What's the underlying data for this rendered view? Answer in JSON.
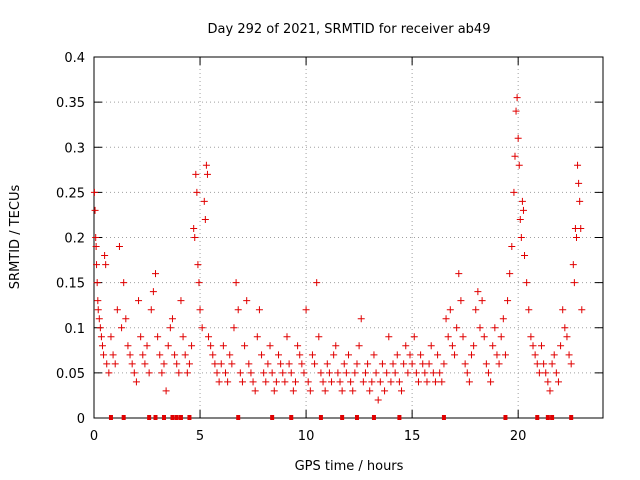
{
  "chart_data": {
    "type": "scatter",
    "title": "Day 292 of 2021, SRMTID for receiver ab49",
    "xlabel": "GPS time / hours",
    "ylabel": "SRMTID / TECUs",
    "xlim": [
      0,
      24
    ],
    "ylim": [
      0,
      0.4
    ],
    "x_ticks": [
      0,
      5,
      10,
      15,
      20
    ],
    "y_ticks": [
      0,
      0.05,
      0.1,
      0.15,
      0.2,
      0.25,
      0.3,
      0.35,
      0.4
    ],
    "x_tick_labels": [
      "0",
      "5",
      "10",
      "15",
      "20"
    ],
    "y_tick_labels": [
      "0",
      "0.05",
      "0.1",
      "0.15",
      "0.2",
      "0.25",
      "0.3",
      "0.35",
      "0.4"
    ],
    "grid": true,
    "marker": "+",
    "color": "#e00000",
    "series": [
      {
        "name": "SRMTID",
        "points": [
          [
            0.02,
            0.25
          ],
          [
            0.05,
            0.23
          ],
          [
            0.08,
            0.2
          ],
          [
            0.1,
            0.19
          ],
          [
            0.12,
            0.17
          ],
          [
            0.15,
            0.15
          ],
          [
            0.18,
            0.13
          ],
          [
            0.2,
            0.12
          ],
          [
            0.25,
            0.11
          ],
          [
            0.3,
            0.1
          ],
          [
            0.35,
            0.09
          ],
          [
            0.4,
            0.08
          ],
          [
            0.45,
            0.07
          ],
          [
            0.5,
            0.18
          ],
          [
            0.55,
            0.17
          ],
          [
            0.6,
            0.06
          ],
          [
            0.7,
            0.05
          ],
          [
            0.8,
            0.09
          ],
          [
            0.9,
            0.07
          ],
          [
            1.0,
            0.06
          ],
          [
            1.1,
            0.12
          ],
          [
            1.2,
            0.19
          ],
          [
            1.3,
            0.1
          ],
          [
            1.4,
            0.15
          ],
          [
            1.5,
            0.11
          ],
          [
            1.6,
            0.08
          ],
          [
            1.7,
            0.07
          ],
          [
            1.8,
            0.06
          ],
          [
            1.9,
            0.05
          ],
          [
            2.0,
            0.04
          ],
          [
            2.1,
            0.13
          ],
          [
            2.2,
            0.09
          ],
          [
            2.3,
            0.07
          ],
          [
            2.4,
            0.06
          ],
          [
            2.5,
            0.08
          ],
          [
            2.6,
            0.05
          ],
          [
            2.7,
            0.12
          ],
          [
            2.8,
            0.14
          ],
          [
            2.9,
            0.16
          ],
          [
            3.0,
            0.09
          ],
          [
            3.1,
            0.07
          ],
          [
            3.2,
            0.05
          ],
          [
            3.3,
            0.06
          ],
          [
            3.4,
            0.03
          ],
          [
            3.5,
            0.08
          ],
          [
            3.6,
            0.1
          ],
          [
            3.7,
            0.11
          ],
          [
            3.8,
            0.07
          ],
          [
            3.9,
            0.06
          ],
          [
            4.0,
            0.05
          ],
          [
            4.1,
            0.13
          ],
          [
            4.2,
            0.09
          ],
          [
            4.3,
            0.07
          ],
          [
            4.4,
            0.05
          ],
          [
            4.5,
            0.06
          ],
          [
            4.6,
            0.08
          ],
          [
            4.7,
            0.21
          ],
          [
            4.75,
            0.2
          ],
          [
            4.8,
            0.27
          ],
          [
            4.85,
            0.25
          ],
          [
            4.9,
            0.17
          ],
          [
            4.95,
            0.15
          ],
          [
            5.0,
            0.12
          ],
          [
            5.1,
            0.1
          ],
          [
            5.2,
            0.24
          ],
          [
            5.25,
            0.22
          ],
          [
            5.3,
            0.28
          ],
          [
            5.35,
            0.27
          ],
          [
            5.4,
            0.09
          ],
          [
            5.5,
            0.08
          ],
          [
            5.6,
            0.07
          ],
          [
            5.7,
            0.06
          ],
          [
            5.8,
            0.05
          ],
          [
            5.9,
            0.04
          ],
          [
            6.0,
            0.06
          ],
          [
            6.1,
            0.08
          ],
          [
            6.2,
            0.05
          ],
          [
            6.3,
            0.04
          ],
          [
            6.4,
            0.07
          ],
          [
            6.5,
            0.06
          ],
          [
            6.6,
            0.1
          ],
          [
            6.7,
            0.15
          ],
          [
            6.8,
            0.12
          ],
          [
            6.9,
            0.05
          ],
          [
            7.0,
            0.04
          ],
          [
            7.1,
            0.08
          ],
          [
            7.2,
            0.13
          ],
          [
            7.3,
            0.06
          ],
          [
            7.4,
            0.05
          ],
          [
            7.5,
            0.04
          ],
          [
            7.6,
            0.03
          ],
          [
            7.7,
            0.09
          ],
          [
            7.8,
            0.12
          ],
          [
            7.9,
            0.07
          ],
          [
            8.0,
            0.05
          ],
          [
            8.1,
            0.04
          ],
          [
            8.2,
            0.06
          ],
          [
            8.3,
            0.08
          ],
          [
            8.4,
            0.05
          ],
          [
            8.5,
            0.03
          ],
          [
            8.6,
            0.04
          ],
          [
            8.7,
            0.07
          ],
          [
            8.8,
            0.06
          ],
          [
            8.9,
            0.05
          ],
          [
            9.0,
            0.04
          ],
          [
            9.1,
            0.09
          ],
          [
            9.2,
            0.06
          ],
          [
            9.3,
            0.05
          ],
          [
            9.4,
            0.03
          ],
          [
            9.5,
            0.04
          ],
          [
            9.6,
            0.08
          ],
          [
            9.7,
            0.07
          ],
          [
            9.8,
            0.06
          ],
          [
            9.9,
            0.05
          ],
          [
            10.0,
            0.12
          ],
          [
            10.1,
            0.04
          ],
          [
            10.2,
            0.03
          ],
          [
            10.3,
            0.07
          ],
          [
            10.4,
            0.06
          ],
          [
            10.5,
            0.15
          ],
          [
            10.6,
            0.09
          ],
          [
            10.7,
            0.05
          ],
          [
            10.8,
            0.04
          ],
          [
            10.9,
            0.03
          ],
          [
            11.0,
            0.06
          ],
          [
            11.1,
            0.05
          ],
          [
            11.2,
            0.04
          ],
          [
            11.3,
            0.07
          ],
          [
            11.4,
            0.08
          ],
          [
            11.5,
            0.05
          ],
          [
            11.6,
            0.04
          ],
          [
            11.7,
            0.03
          ],
          [
            11.8,
            0.06
          ],
          [
            11.9,
            0.05
          ],
          [
            12.0,
            0.07
          ],
          [
            12.1,
            0.04
          ],
          [
            12.2,
            0.03
          ],
          [
            12.3,
            0.05
          ],
          [
            12.4,
            0.06
          ],
          [
            12.5,
            0.08
          ],
          [
            12.6,
            0.11
          ],
          [
            12.7,
            0.04
          ],
          [
            12.8,
            0.05
          ],
          [
            12.9,
            0.06
          ],
          [
            13.0,
            0.03
          ],
          [
            13.1,
            0.04
          ],
          [
            13.2,
            0.07
          ],
          [
            13.3,
            0.05
          ],
          [
            13.4,
            0.02
          ],
          [
            13.5,
            0.04
          ],
          [
            13.6,
            0.06
          ],
          [
            13.7,
            0.03
          ],
          [
            13.8,
            0.05
          ],
          [
            13.9,
            0.09
          ],
          [
            14.0,
            0.04
          ],
          [
            14.1,
            0.06
          ],
          [
            14.2,
            0.05
          ],
          [
            14.3,
            0.07
          ],
          [
            14.4,
            0.04
          ],
          [
            14.5,
            0.03
          ],
          [
            14.6,
            0.06
          ],
          [
            14.7,
            0.08
          ],
          [
            14.8,
            0.05
          ],
          [
            14.9,
            0.07
          ],
          [
            15.0,
            0.06
          ],
          [
            15.1,
            0.09
          ],
          [
            15.2,
            0.05
          ],
          [
            15.3,
            0.04
          ],
          [
            15.4,
            0.07
          ],
          [
            15.5,
            0.06
          ],
          [
            15.6,
            0.05
          ],
          [
            15.7,
            0.04
          ],
          [
            15.8,
            0.06
          ],
          [
            15.9,
            0.08
          ],
          [
            16.0,
            0.05
          ],
          [
            16.1,
            0.04
          ],
          [
            16.2,
            0.07
          ],
          [
            16.3,
            0.05
          ],
          [
            16.4,
            0.04
          ],
          [
            16.5,
            0.06
          ],
          [
            16.6,
            0.11
          ],
          [
            16.7,
            0.09
          ],
          [
            16.8,
            0.12
          ],
          [
            16.9,
            0.08
          ],
          [
            17.0,
            0.07
          ],
          [
            17.1,
            0.1
          ],
          [
            17.2,
            0.16
          ],
          [
            17.3,
            0.13
          ],
          [
            17.4,
            0.09
          ],
          [
            17.5,
            0.06
          ],
          [
            17.6,
            0.05
          ],
          [
            17.7,
            0.04
          ],
          [
            17.8,
            0.07
          ],
          [
            17.9,
            0.08
          ],
          [
            18.0,
            0.12
          ],
          [
            18.1,
            0.14
          ],
          [
            18.2,
            0.1
          ],
          [
            18.3,
            0.13
          ],
          [
            18.4,
            0.09
          ],
          [
            18.5,
            0.06
          ],
          [
            18.6,
            0.05
          ],
          [
            18.7,
            0.04
          ],
          [
            18.8,
            0.08
          ],
          [
            18.9,
            0.1
          ],
          [
            19.0,
            0.07
          ],
          [
            19.1,
            0.06
          ],
          [
            19.2,
            0.09
          ],
          [
            19.3,
            0.11
          ],
          [
            19.4,
            0.07
          ],
          [
            19.5,
            0.13
          ],
          [
            19.6,
            0.16
          ],
          [
            19.7,
            0.19
          ],
          [
            19.8,
            0.25
          ],
          [
            19.85,
            0.29
          ],
          [
            19.9,
            0.34
          ],
          [
            19.95,
            0.355
          ],
          [
            20.0,
            0.31
          ],
          [
            20.05,
            0.28
          ],
          [
            20.1,
            0.22
          ],
          [
            20.15,
            0.2
          ],
          [
            20.2,
            0.24
          ],
          [
            20.25,
            0.23
          ],
          [
            20.3,
            0.18
          ],
          [
            20.4,
            0.15
          ],
          [
            20.5,
            0.12
          ],
          [
            20.6,
            0.09
          ],
          [
            20.7,
            0.08
          ],
          [
            20.8,
            0.07
          ],
          [
            20.9,
            0.06
          ],
          [
            21.0,
            0.05
          ],
          [
            21.1,
            0.08
          ],
          [
            21.2,
            0.06
          ],
          [
            21.3,
            0.05
          ],
          [
            21.4,
            0.04
          ],
          [
            21.5,
            0.03
          ],
          [
            21.6,
            0.06
          ],
          [
            21.7,
            0.07
          ],
          [
            21.8,
            0.05
          ],
          [
            21.9,
            0.04
          ],
          [
            22.0,
            0.08
          ],
          [
            22.1,
            0.12
          ],
          [
            22.2,
            0.1
          ],
          [
            22.3,
            0.09
          ],
          [
            22.4,
            0.07
          ],
          [
            22.5,
            0.06
          ],
          [
            22.6,
            0.17
          ],
          [
            22.65,
            0.15
          ],
          [
            22.7,
            0.21
          ],
          [
            22.75,
            0.2
          ],
          [
            22.8,
            0.28
          ],
          [
            22.85,
            0.26
          ],
          [
            22.9,
            0.24
          ],
          [
            22.95,
            0.21
          ],
          [
            23.0,
            0.12
          ]
        ],
        "zero_markers_x": [
          0.8,
          1.4,
          2.6,
          2.9,
          3.3,
          3.7,
          3.9,
          4.1,
          4.5,
          6.8,
          8.4,
          9.3,
          10.7,
          11.7,
          12.4,
          13.2,
          14.4,
          16.5,
          19.4,
          20.9,
          21.4,
          21.6,
          22.5
        ]
      }
    ]
  }
}
